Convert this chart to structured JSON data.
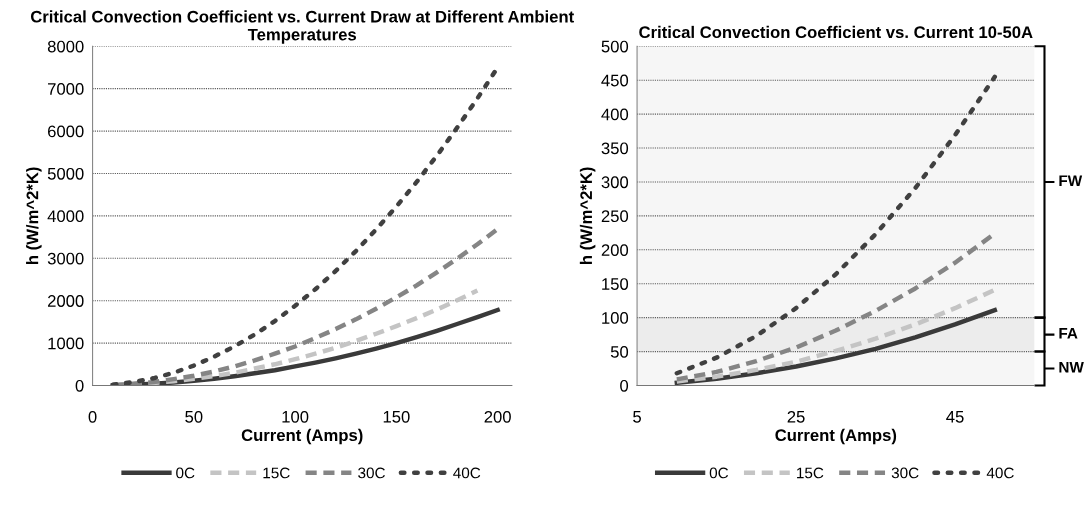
{
  "chart_data": [
    {
      "type": "line",
      "title": "Critical Convection Coefficient vs. Current Draw at Different Ambient Temperatures",
      "xlabel": "Current (Amps)",
      "ylabel": "h (W/m^2*K)",
      "x": [
        10,
        20,
        30,
        40,
        50,
        60,
        70,
        80,
        90,
        100,
        110,
        120,
        130,
        140,
        150,
        160,
        170,
        180,
        190,
        200
      ],
      "xlim": [
        0,
        207
      ],
      "xticks": [
        0,
        50,
        100,
        150,
        200
      ],
      "ylim": [
        0,
        8000
      ],
      "yticks": [
        0,
        1000,
        2000,
        3000,
        4000,
        5000,
        6000,
        7000,
        8000
      ],
      "grid": "y",
      "legend": "bottom",
      "marker": "none",
      "series": [
        {
          "name": "0C",
          "color": "#3a3a3a",
          "line_style": "solid",
          "values": [
            0,
            20,
            40,
            70,
            110,
            160,
            220,
            290,
            360,
            450,
            540,
            640,
            750,
            870,
            1000,
            1140,
            1290,
            1450,
            1610,
            1780
          ]
        },
        {
          "name": "15C",
          "color": "#c4c4c4",
          "line_style": "dashed",
          "values": [
            10,
            30,
            60,
            100,
            160,
            220,
            300,
            400,
            500,
            620,
            750,
            890,
            1050,
            1220,
            1400,
            1590,
            1790,
            2010,
            2240,
            null
          ]
        },
        {
          "name": "30C",
          "color": "#858585",
          "line_style": "dashed",
          "values": [
            10,
            40,
            80,
            150,
            230,
            330,
            450,
            590,
            750,
            920,
            1120,
            1330,
            1560,
            1810,
            2080,
            2360,
            2670,
            2990,
            3330,
            3690
          ]
        },
        {
          "name": "40C",
          "color": "#404040",
          "line_style": "dotted",
          "values": [
            20,
            80,
            170,
            300,
            470,
            680,
            920,
            1200,
            1520,
            1880,
            2270,
            2700,
            3170,
            3680,
            4220,
            4800,
            5420,
            6080,
            6770,
            7500
          ]
        }
      ]
    },
    {
      "type": "line",
      "title": "Critical Convection Coefficient vs. Current 10-50A",
      "xlabel": "Current (Amps)",
      "ylabel": "h (W/m^2*K)",
      "x": [
        10,
        15,
        20,
        25,
        30,
        35,
        40,
        45,
        50
      ],
      "xlim": [
        5,
        55
      ],
      "xticks": [
        5,
        25,
        45
      ],
      "ylim": [
        0,
        500
      ],
      "yticks": [
        0,
        50,
        100,
        150,
        200,
        250,
        300,
        350,
        400,
        450,
        500
      ],
      "grid": "y",
      "legend": "bottom",
      "marker": "none",
      "series": [
        {
          "name": "0C",
          "color": "#3a3a3a",
          "line_style": "solid",
          "values": [
            4,
            10,
            18,
            28,
            40,
            54,
            71,
            90,
            111
          ]
        },
        {
          "name": "15C",
          "color": "#c4c4c4",
          "line_style": "dashed",
          "values": [
            6,
            13,
            23,
            35,
            51,
            69,
            90,
            114,
            141
          ]
        },
        {
          "name": "30C",
          "color": "#858585",
          "line_style": "dashed",
          "values": [
            9,
            20,
            36,
            56,
            81,
            110,
            143,
            181,
            224
          ]
        },
        {
          "name": "40C",
          "color": "#404040",
          "line_style": "dotted",
          "values": [
            18,
            41,
            73,
            114,
            164,
            223,
            291,
            369,
            455
          ]
        }
      ],
      "bands": [
        {
          "axis": "y",
          "from": 100,
          "to": 500,
          "label": "FW",
          "color": "#f6f6f6"
        },
        {
          "axis": "y",
          "from": 50,
          "to": 100,
          "label": "FA",
          "color": "#ececec"
        },
        {
          "axis": "y",
          "from": 0,
          "to": 50,
          "label": "NW",
          "color": "#f6f6f6"
        }
      ]
    }
  ]
}
